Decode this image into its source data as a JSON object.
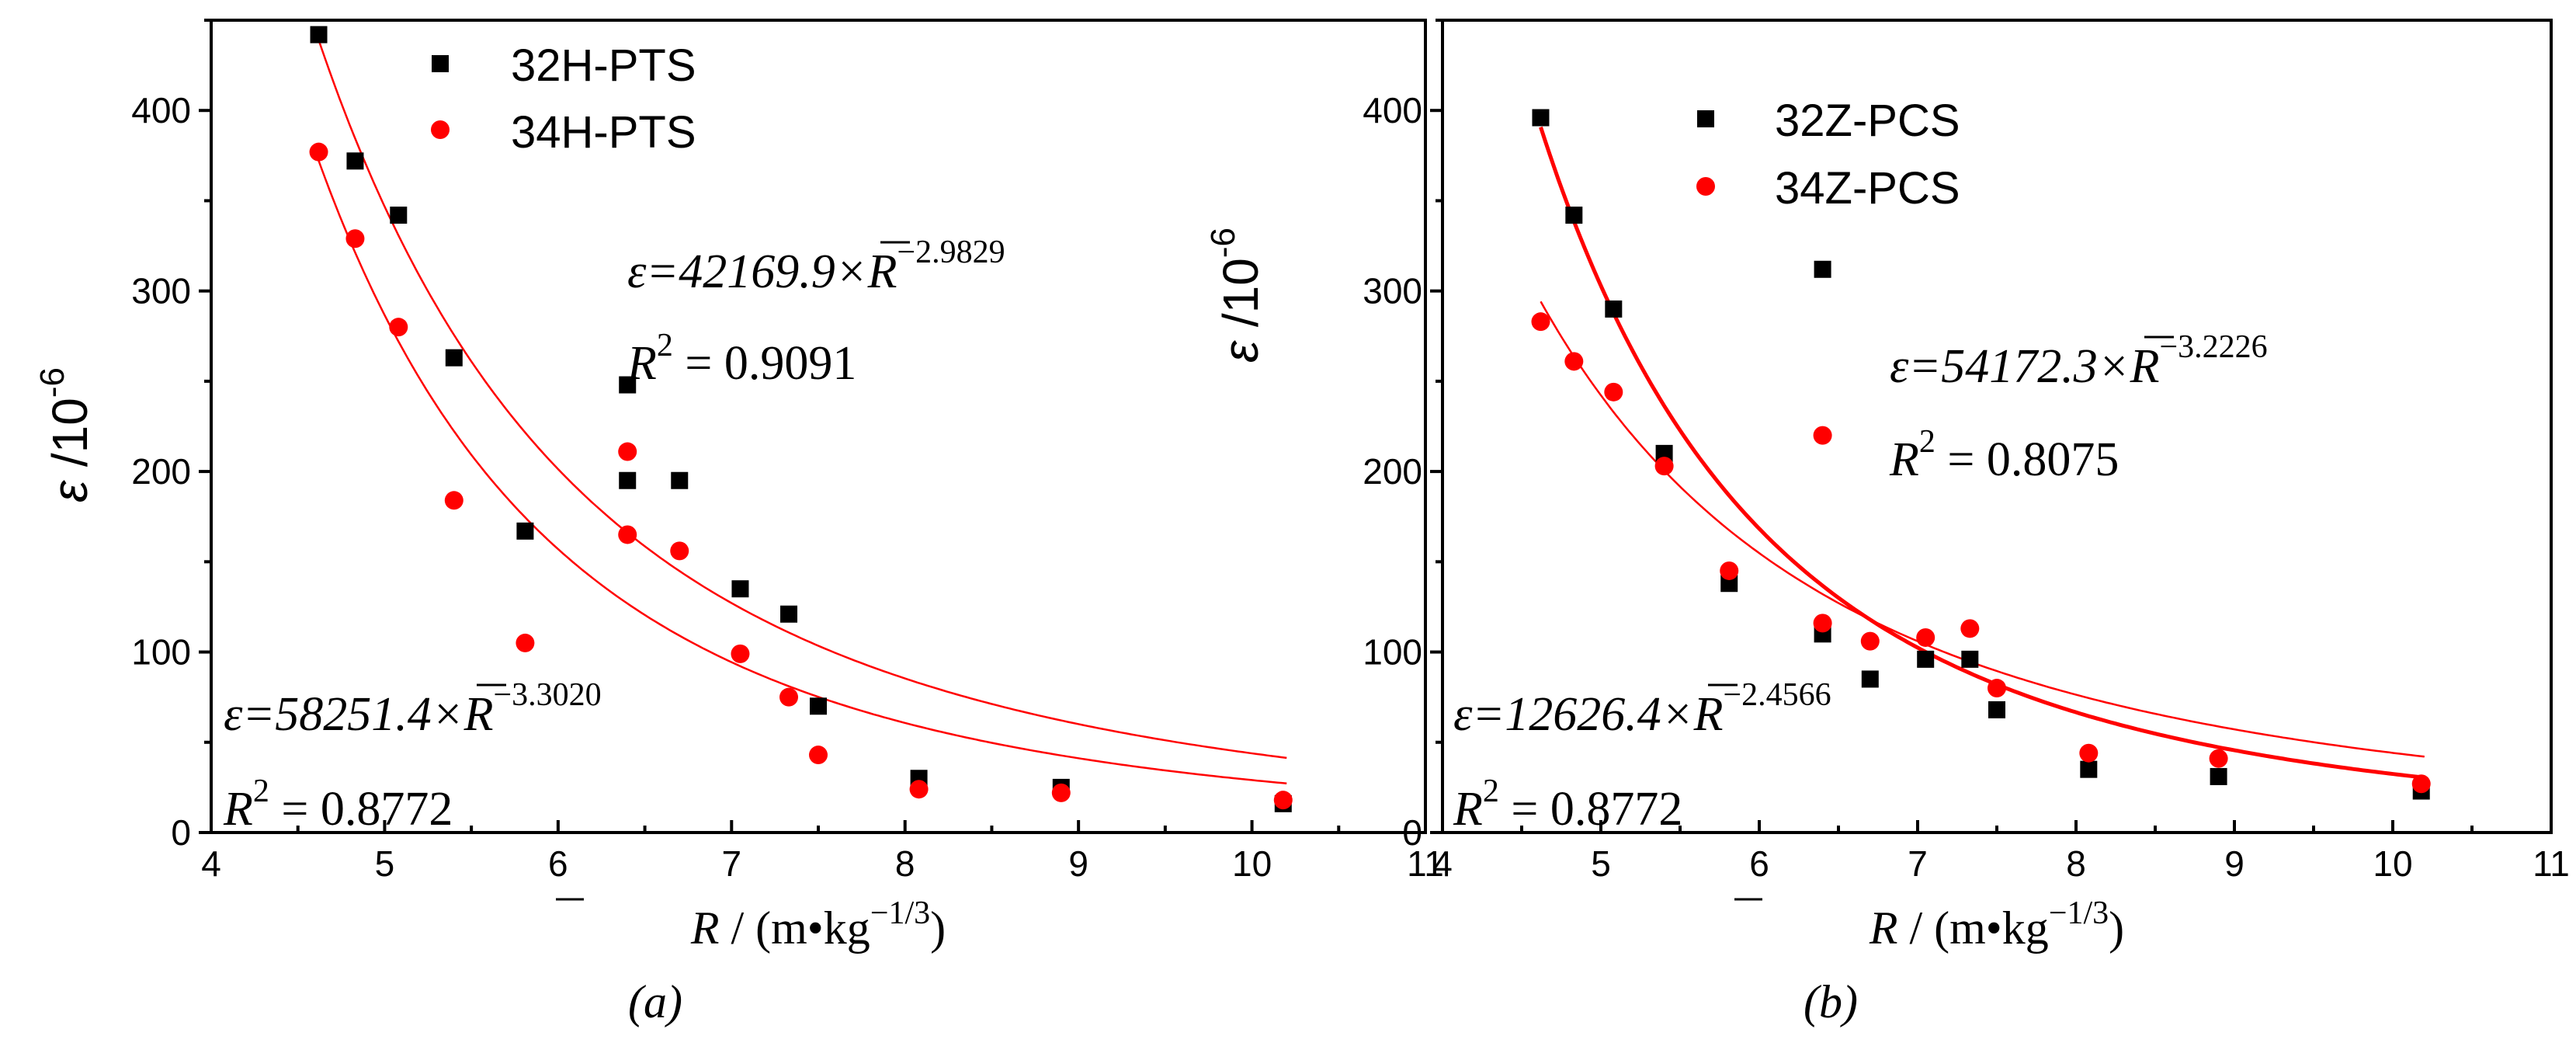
{
  "chart_data": [
    {
      "id": "a",
      "type": "scatter",
      "caption": "(a)",
      "xlabel": {
        "symbol": "R",
        "unit": " / (m•kg",
        "exp": "−1/3",
        "close": ")"
      },
      "ylabel": {
        "symbol": "ε",
        "unit": " /10",
        "exp": "-6"
      },
      "xlim": [
        4,
        11
      ],
      "ylim": [
        0,
        450
      ],
      "xticks": [
        4,
        5,
        6,
        7,
        8,
        9,
        10,
        11
      ],
      "yticks": [
        0,
        100,
        200,
        300,
        400
      ],
      "xtick_labels": [
        "4",
        "5",
        "6",
        "7",
        "8",
        "9",
        "10",
        "11"
      ],
      "ytick_labels": [
        "0",
        "100",
        "200",
        "300",
        "400"
      ],
      "legend_position": "top-center",
      "series": [
        {
          "name": "32H-PTS",
          "marker": "square",
          "color": "#000000",
          "x": [
            4.62,
            4.83,
            5.08,
            5.4,
            5.81,
            6.4,
            6.4,
            6.7,
            7.05,
            7.33,
            7.5,
            8.08,
            8.9,
            10.18
          ],
          "y": [
            442,
            372,
            342,
            263,
            167,
            248,
            195,
            195,
            135,
            121,
            70,
            30,
            25,
            16
          ]
        },
        {
          "name": "34H-PTS",
          "marker": "circle",
          "color": "#ff0000",
          "x": [
            4.62,
            4.83,
            5.08,
            5.4,
            5.81,
            6.4,
            6.4,
            6.7,
            7.05,
            7.33,
            7.5,
            8.08,
            8.9,
            10.18
          ],
          "y": [
            377,
            329,
            280,
            184,
            105,
            211,
            165,
            156,
            99,
            75,
            43,
            24,
            22,
            18
          ]
        }
      ],
      "fits": [
        {
          "coef": 42169.9,
          "exp": -2.9829,
          "stroke": 2.5,
          "color": "#ff0000",
          "x_range": [
            4.6,
            10.2
          ]
        },
        {
          "coef": 58251.4,
          "exp": -3.302,
          "stroke": 2.5,
          "color": "#ff0000",
          "x_range": [
            4.6,
            10.2
          ]
        }
      ],
      "annotations": [
        {
          "id": "eq1",
          "lead": "ε=42169.9×",
          "var": "R",
          "sup": "−2.9829"
        },
        {
          "id": "r1",
          "lead": "R",
          "sq": "2",
          "rest": " = 0.9091"
        },
        {
          "id": "eq2",
          "lead": "ε=58251.4×",
          "var": "R",
          "sup": "−3.3020"
        },
        {
          "id": "r2",
          "lead": "R",
          "sq": "2",
          "rest": " = 0.8772"
        }
      ]
    },
    {
      "id": "b",
      "type": "scatter",
      "caption": "(b)",
      "xlabel": {
        "symbol": "R",
        "unit": " / (m•kg",
        "exp": "−1/3",
        "close": ")"
      },
      "ylabel": {
        "symbol": "ε",
        "unit": " /10",
        "exp": "-6"
      },
      "xlim": [
        4,
        11
      ],
      "ylim": [
        0,
        450
      ],
      "xticks": [
        4,
        5,
        6,
        7,
        8,
        9,
        10,
        11
      ],
      "yticks": [
        0,
        100,
        200,
        300,
        400
      ],
      "xtick_labels": [
        "4",
        "5",
        "6",
        "7",
        "8",
        "9",
        "10",
        "11"
      ],
      "ytick_labels": [
        "0",
        "100",
        "200",
        "300",
        "400"
      ],
      "legend_position": "top-center",
      "series": [
        {
          "name": "32Z-PCS",
          "marker": "square",
          "color": "#000000",
          "x": [
            4.62,
            4.83,
            5.08,
            5.4,
            5.81,
            6.4,
            6.4,
            6.7,
            7.05,
            7.33,
            7.5,
            8.08,
            8.9,
            10.18
          ],
          "y": [
            396,
            342,
            290,
            210,
            138,
            312,
            110,
            85,
            96,
            96,
            68,
            35,
            31,
            23
          ]
        },
        {
          "name": "34Z-PCS",
          "marker": "circle",
          "color": "#ff0000",
          "x": [
            4.62,
            4.83,
            5.08,
            5.4,
            5.81,
            6.4,
            6.4,
            6.7,
            7.05,
            7.33,
            7.5,
            8.08,
            8.9,
            10.18
          ],
          "y": [
            283,
            261,
            244,
            203,
            145,
            220,
            116,
            106,
            108,
            113,
            80,
            44,
            41,
            27
          ]
        }
      ],
      "fits": [
        {
          "coef": 54172.3,
          "exp": -3.2226,
          "stroke": 5,
          "color": "#ff0000",
          "x_range": [
            4.62,
            10.2
          ]
        },
        {
          "coef": 12626.4,
          "exp": -2.4566,
          "stroke": 2.5,
          "color": "#ff0000",
          "x_range": [
            4.62,
            10.2
          ]
        }
      ],
      "annotations": [
        {
          "id": "eq1",
          "lead": "ε=54172.3×",
          "var": "R",
          "sup": "−3.2226"
        },
        {
          "id": "r1",
          "lead": "R",
          "sq": "2",
          "rest": " = 0.8075"
        },
        {
          "id": "eq2",
          "lead": "ε=12626.4×",
          "var": "R",
          "sup": "−2.4566"
        },
        {
          "id": "r2",
          "lead": "R",
          "sq": "2",
          "rest": " = 0.8772"
        }
      ]
    }
  ]
}
